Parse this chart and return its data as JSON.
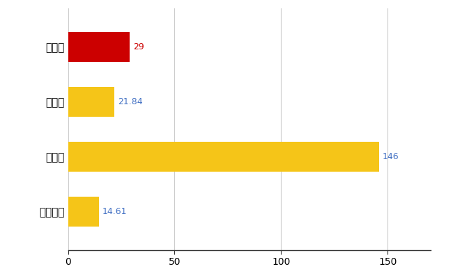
{
  "categories": [
    "日野町",
    "県平均",
    "県最大",
    "全国平均"
  ],
  "values": [
    29,
    21.84,
    146,
    14.61
  ],
  "bar_colors": [
    "#cc0000",
    "#f5c518",
    "#f5c518",
    "#f5c518"
  ],
  "label_color_0": "#cc0000",
  "label_color_rest": "#4472c4",
  "background_color": "#ffffff",
  "xlim": [
    0,
    170
  ],
  "xticks": [
    0,
    50,
    100,
    150
  ],
  "bar_height": 0.55,
  "grid_color": "#cccccc",
  "value_labels": [
    "29",
    "21.84",
    "146",
    "14.61"
  ]
}
